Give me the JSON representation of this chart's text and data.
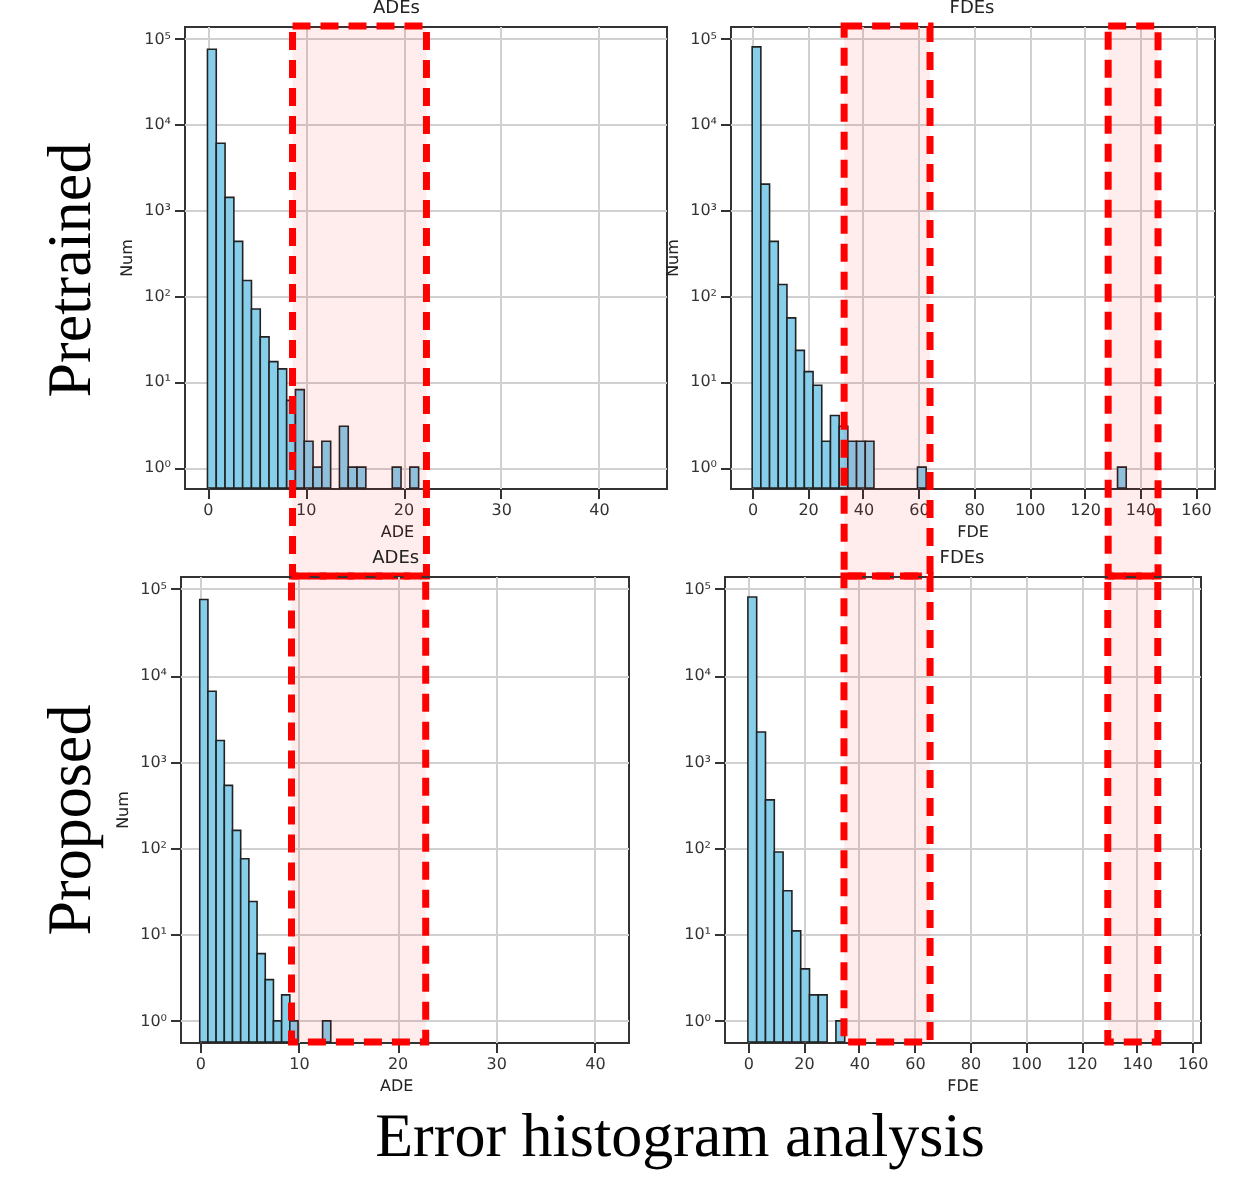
{
  "chart_data": [
    {
      "type": "histogram",
      "title": "ADEs",
      "xlabel": "ADE",
      "ylabel": "Num",
      "color": "#87ceeb",
      "log": "y",
      "grid": true,
      "annotations": [
        "Pretrained"
      ],
      "bands": [
        {
          "axis": "x",
          "from": 8.7,
          "to": 22.4,
          "color": "#ff0000"
        }
      ],
      "bins": [
        0,
        0.9,
        1.8,
        2.7,
        3.6,
        4.5,
        5.4,
        6.3,
        7.2,
        8.1,
        9,
        9.9,
        10.8,
        11.7,
        12.6,
        13.5,
        14.4,
        15.3,
        16.2,
        17.1,
        18,
        18.9,
        19.8,
        20.7,
        21.6
      ],
      "values": [
        75000,
        6000,
        1400,
        430,
        150,
        70,
        33,
        17,
        14,
        6,
        8,
        2,
        1,
        2,
        null,
        3,
        1,
        1,
        null,
        null,
        null,
        1,
        null,
        1
      ],
      "xlim": [
        -2.4,
        46.9
      ],
      "xticks": [
        0,
        10,
        20,
        30,
        40
      ],
      "ylim": [
        0.57,
        140000
      ],
      "yticks": [
        {
          "value": 1,
          "label": "10⁰"
        },
        {
          "value": 10,
          "label": "10¹"
        },
        {
          "value": 100,
          "label": "10²"
        },
        {
          "value": 1000,
          "label": "10³"
        },
        {
          "value": 10000,
          "label": "10⁴"
        },
        {
          "value": 100000,
          "label": "10⁵"
        }
      ]
    },
    {
      "type": "histogram",
      "title": "FDEs",
      "xlabel": "FDE",
      "ylabel": "Num",
      "color": "#87ceeb",
      "log": "y",
      "grid": true,
      "bands": [
        {
          "axis": "x",
          "from": 33.2,
          "to": 64.2,
          "color": "#ff0000"
        },
        {
          "axis": "x",
          "from": 128.5,
          "to": 146.5,
          "color": "#ff0000"
        }
      ],
      "bins": [
        0,
        3.14,
        6.28,
        9.42,
        12.56,
        15.7,
        18.84,
        21.98,
        25.12,
        28.26,
        31.4,
        34.54,
        37.68,
        40.82,
        43.96,
        47.1,
        50.24,
        53.38,
        56.52,
        59.66,
        62.8,
        65.94,
        69.08,
        72.22,
        75.36,
        78.5,
        81.64,
        84.78,
        87.92,
        91.06,
        94.2,
        97.34,
        100.48,
        103.62,
        106.76,
        109.9,
        113.04,
        116.18,
        119.32,
        122.46,
        125.6,
        128.74,
        131.88,
        135.02
      ],
      "values": [
        80000,
        2000,
        430,
        135,
        55,
        23,
        13,
        9,
        2,
        4,
        3,
        2,
        2,
        2,
        null,
        null,
        null,
        null,
        null,
        1,
        null,
        null,
        null,
        null,
        null,
        null,
        null,
        null,
        null,
        null,
        null,
        null,
        null,
        null,
        null,
        null,
        null,
        null,
        null,
        null,
        null,
        null,
        1
      ],
      "xlim": [
        -8,
        166.7
      ],
      "xticks": [
        0,
        20,
        40,
        60,
        80,
        100,
        120,
        140,
        160
      ],
      "ylim": [
        0.57,
        140000
      ],
      "yticks": [
        {
          "value": 1,
          "label": "10⁰"
        },
        {
          "value": 10,
          "label": "10¹"
        },
        {
          "value": 100,
          "label": "10²"
        },
        {
          "value": 1000,
          "label": "10³"
        },
        {
          "value": 10000,
          "label": "10⁴"
        },
        {
          "value": 100000,
          "label": "10⁵"
        }
      ]
    },
    {
      "type": "histogram",
      "title": "ADEs",
      "xlabel": "ADE",
      "ylabel": "Num",
      "color": "#87ceeb",
      "log": "y",
      "grid": true,
      "annotations": [
        "Proposed",
        "Error histogram analysis"
      ],
      "bands": [
        {
          "axis": "x",
          "from": 9.3,
          "to": 22.9,
          "color": "#ff0000"
        }
      ],
      "bins": [
        0,
        0.83,
        1.66,
        2.49,
        3.32,
        4.15,
        4.98,
        5.81,
        6.64,
        7.47,
        8.3,
        9.13,
        9.96,
        10.79,
        11.62,
        12.45,
        13.28
      ],
      "values": [
        75000,
        6500,
        1750,
        530,
        160,
        75,
        24,
        6,
        3,
        1,
        2,
        1,
        null,
        null,
        null,
        1
      ],
      "xlim": [
        -2,
        43.4
      ],
      "xticks": [
        0,
        10,
        20,
        30,
        40
      ],
      "ylim": [
        0.57,
        140000
      ],
      "yticks": [
        {
          "value": 1,
          "label": "10⁰"
        },
        {
          "value": 10,
          "label": "10¹"
        },
        {
          "value": 100,
          "label": "10²"
        },
        {
          "value": 1000,
          "label": "10³"
        },
        {
          "value": 10000,
          "label": "10⁴"
        },
        {
          "value": 100000,
          "label": "10⁵"
        }
      ]
    },
    {
      "type": "histogram",
      "title": "FDEs",
      "xlabel": "FDE",
      "color": "#87ceeb",
      "log": "y",
      "grid": true,
      "bands": [
        {
          "axis": "x",
          "from": 34.6,
          "to": 65.6,
          "color": "#ff0000"
        },
        {
          "axis": "x",
          "from": 129.6,
          "to": 147.6,
          "color": "#ff0000"
        }
      ],
      "bins": [
        0,
        3.17,
        6.34,
        9.51,
        12.68,
        15.85,
        19.02,
        22.19,
        25.36,
        28.53,
        31.7,
        34.87
      ],
      "values": [
        80000,
        2200,
        360,
        90,
        32,
        11,
        4,
        2,
        2,
        null,
        1
      ],
      "xlim": [
        -8.6,
        162.8
      ],
      "xticks": [
        0,
        20,
        40,
        60,
        80,
        100,
        120,
        140,
        160
      ],
      "ylim": [
        0.57,
        140000
      ],
      "yticks": [
        {
          "value": 1,
          "label": "10⁰"
        },
        {
          "value": 10,
          "label": "10¹"
        },
        {
          "value": 100,
          "label": "10²"
        },
        {
          "value": 1000,
          "label": "10³"
        },
        {
          "value": 10000,
          "label": "10⁴"
        },
        {
          "value": 100000,
          "label": "10⁵"
        }
      ]
    }
  ]
}
